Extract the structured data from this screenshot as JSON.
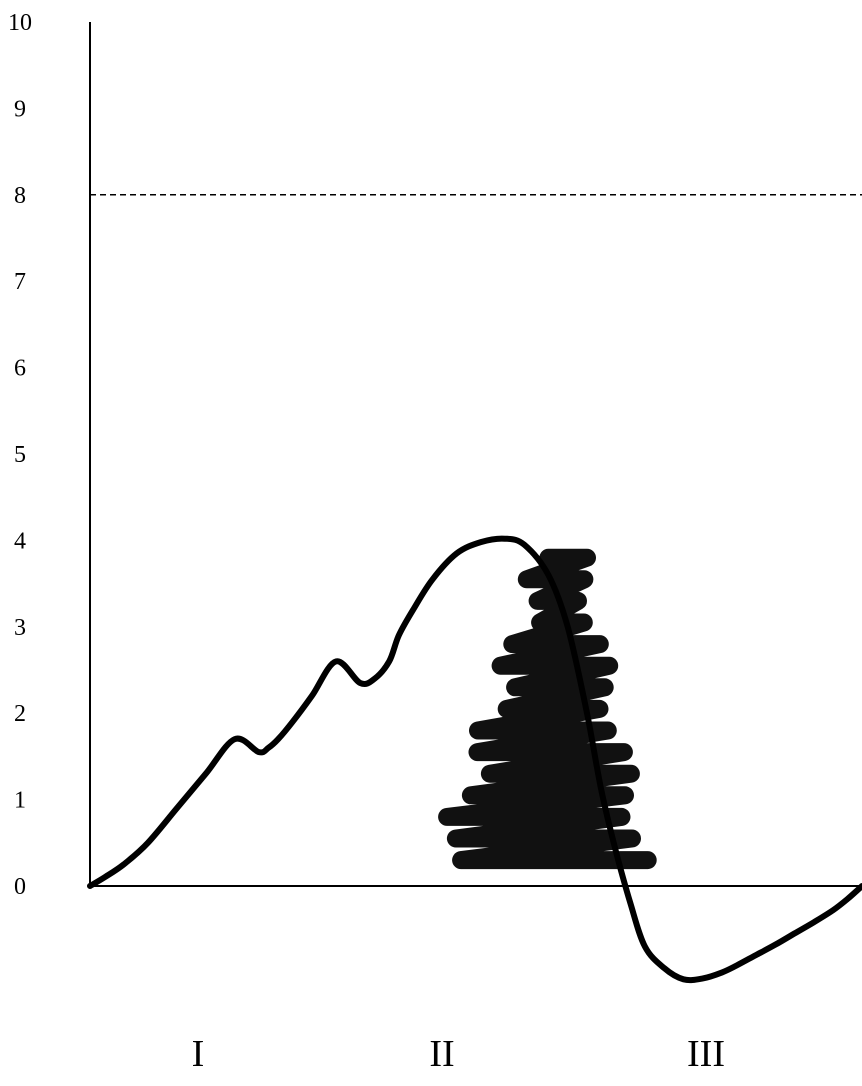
{
  "chart_data": {
    "type": "line",
    "title": "",
    "xlabel": "",
    "ylabel": "",
    "ylim": [
      -1.2,
      10
    ],
    "y_ticks": [
      "0",
      "1",
      "2",
      "3",
      "4",
      "5",
      "6",
      "7",
      "8",
      "9",
      "10"
    ],
    "y_tick_values": [
      0,
      1,
      2,
      3,
      4,
      5,
      6,
      7,
      8,
      9,
      10
    ],
    "threshold": {
      "value": 8,
      "style": "dashed"
    },
    "regions": [
      "I",
      "II",
      "III"
    ],
    "curve": {
      "x": [
        0,
        0.15,
        0.35,
        0.6,
        0.9,
        1.2,
        1.5,
        1.75,
        1.85,
        1.95,
        2.1,
        2.3,
        2.55,
        2.8,
        2.95,
        3.1,
        3.2,
        3.35,
        3.55,
        3.8,
        4.05,
        4.3,
        4.5,
        4.75,
        4.95,
        5.15,
        5.3,
        5.45,
        5.6,
        5.75,
        5.95,
        6.15,
        6.35,
        6.55,
        6.7,
        6.9,
        7.1,
        7.3,
        7.5,
        7.7,
        7.85,
        8.0
      ],
      "y": [
        0,
        0.1,
        0.25,
        0.5,
        0.9,
        1.3,
        1.7,
        1.55,
        1.6,
        1.7,
        1.9,
        2.2,
        2.6,
        2.35,
        2.4,
        2.6,
        2.9,
        3.2,
        3.55,
        3.85,
        3.98,
        4.02,
        3.95,
        3.6,
        3.0,
        2.0,
        1.1,
        0.4,
        -0.2,
        -0.7,
        -0.95,
        -1.08,
        -1.07,
        -1.0,
        -0.92,
        -0.8,
        -0.68,
        -0.55,
        -0.42,
        -0.28,
        -0.15,
        0.0
      ]
    },
    "hatch": {
      "x_range": [
        3.7,
        5.7
      ],
      "y_range": [
        0.3,
        3.8
      ],
      "strokes": 15,
      "description_color": "#000000"
    },
    "colors": {
      "curve": "#000000",
      "axes": "#000000",
      "hatch": "#111111"
    }
  }
}
